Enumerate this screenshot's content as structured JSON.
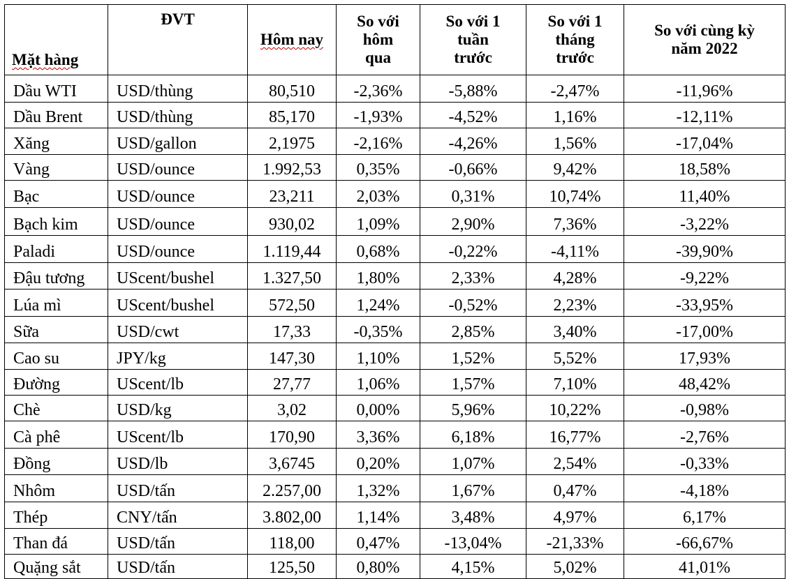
{
  "headers": {
    "item": "Mặt hàng",
    "unit": "ĐVT",
    "today": "Hôm nay",
    "vs_yesterday": "So với hôm qua",
    "vs_week": "So với 1 tuần trước",
    "vs_month": "So với 1 tháng trước",
    "vs_year": "So với cùng kỳ năm 2022"
  },
  "rows": [
    {
      "item": "Dầu WTI",
      "unit": "USD/thùng",
      "today": "80,510",
      "d": "-2,36%",
      "w": "-5,88%",
      "m": "-2,47%",
      "y": "-11,96%"
    },
    {
      "item": "Dầu Brent",
      "unit": "USD/thùng",
      "today": "85,170",
      "d": "-1,93%",
      "w": "-4,52%",
      "m": "1,16%",
      "y": "-12,11%"
    },
    {
      "item": "Xăng",
      "unit": "USD/gallon",
      "today": "2,1975",
      "d": "-2,16%",
      "w": "-4,26%",
      "m": "1,56%",
      "y": "-17,04%"
    },
    {
      "item": "Vàng",
      "unit": "USD/ounce",
      "today": "1.992,53",
      "d": "0,35%",
      "w": "-0,66%",
      "m": "9,42%",
      "y": "18,58%"
    },
    {
      "item": "Bạc",
      "unit": "USD/ounce",
      "today": "23,211",
      "d": "2,03%",
      "w": "0,31%",
      "m": "10,74%",
      "y": "11,40%"
    },
    {
      "item": "Bạch kim",
      "unit": "USD/ounce",
      "today": "930,02",
      "d": "1,09%",
      "w": "2,90%",
      "m": "7,36%",
      "y": "-3,22%"
    },
    {
      "item": "Paladi",
      "unit": "USD/ounce",
      "today": "1.119,44",
      "d": "0,68%",
      "w": "-0,22%",
      "m": "-4,11%",
      "y": "-39,90%"
    },
    {
      "item": "Đậu tương",
      "unit": "UScent/bushel",
      "today": "1.327,50",
      "d": "1,80%",
      "w": "2,33%",
      "m": "4,28%",
      "y": "-9,22%"
    },
    {
      "item": "Lúa mì",
      "unit": "UScent/bushel",
      "today": "572,50",
      "d": "1,24%",
      "w": "-0,52%",
      "m": "2,23%",
      "y": "-33,95%"
    },
    {
      "item": "Sữa",
      "unit": "USD/cwt",
      "today": "17,33",
      "d": "-0,35%",
      "w": "2,85%",
      "m": "3,40%",
      "y": "-17,00%"
    },
    {
      "item": "Cao su",
      "unit": "JPY/kg",
      "today": "147,30",
      "d": "1,10%",
      "w": "1,52%",
      "m": "5,52%",
      "y": "17,93%"
    },
    {
      "item": "Đường",
      "unit": "UScent/lb",
      "today": "27,77",
      "d": "1,06%",
      "w": "1,57%",
      "m": "7,10%",
      "y": "48,42%"
    },
    {
      "item": "Chè",
      "unit": "USD/kg",
      "today": "3,02",
      "d": "0,00%",
      "w": "5,96%",
      "m": "10,22%",
      "y": "-0,98%"
    },
    {
      "item": "Cà phê",
      "unit": "UScent/lb",
      "today": "170,90",
      "d": "3,36%",
      "w": "6,18%",
      "m": "16,77%",
      "y": "-2,76%"
    },
    {
      "item": "Đồng",
      "unit": "USD/lb",
      "today": "3,6745",
      "d": "0,20%",
      "w": "1,07%",
      "m": "2,54%",
      "y": "-0,33%"
    },
    {
      "item": "Nhôm",
      "unit": "USD/tấn",
      "today": "2.257,00",
      "d": "1,32%",
      "w": "1,67%",
      "m": "0,47%",
      "y": "-4,18%"
    },
    {
      "item": "Thép",
      "unit": "CNY/tấn",
      "today": "3.802,00",
      "d": "1,14%",
      "w": "3,48%",
      "m": "4,97%",
      "y": "6,17%"
    },
    {
      "item": "Than đá",
      "unit": "USD/tấn",
      "today": "118,00",
      "d": "0,47%",
      "w": "-13,04%",
      "m": "-21,33%",
      "y": "-66,67%"
    },
    {
      "item": "Quặng sắt",
      "unit": "USD/tấn",
      "today": "125,50",
      "d": "0,80%",
      "w": "4,15%",
      "m": "5,02%",
      "y": "41,01%"
    }
  ]
}
